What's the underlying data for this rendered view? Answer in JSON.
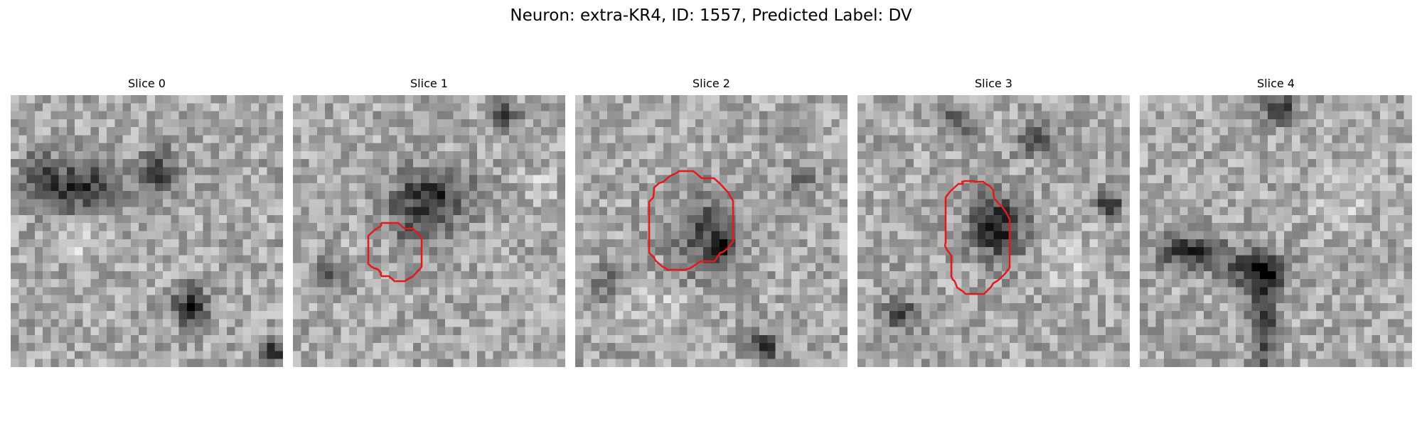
{
  "figure": {
    "title": "Neuron: extra-KR4, ID: 1557, Predicted Label: DV",
    "outline_color": "#e31a1c",
    "colormap": "gray"
  },
  "slices": [
    {
      "title": "Slice 0",
      "has_outline": false
    },
    {
      "title": "Slice 1",
      "has_outline": true
    },
    {
      "title": "Slice 2",
      "has_outline": true
    },
    {
      "title": "Slice 3",
      "has_outline": true
    },
    {
      "title": "Slice 4",
      "has_outline": false
    }
  ]
}
